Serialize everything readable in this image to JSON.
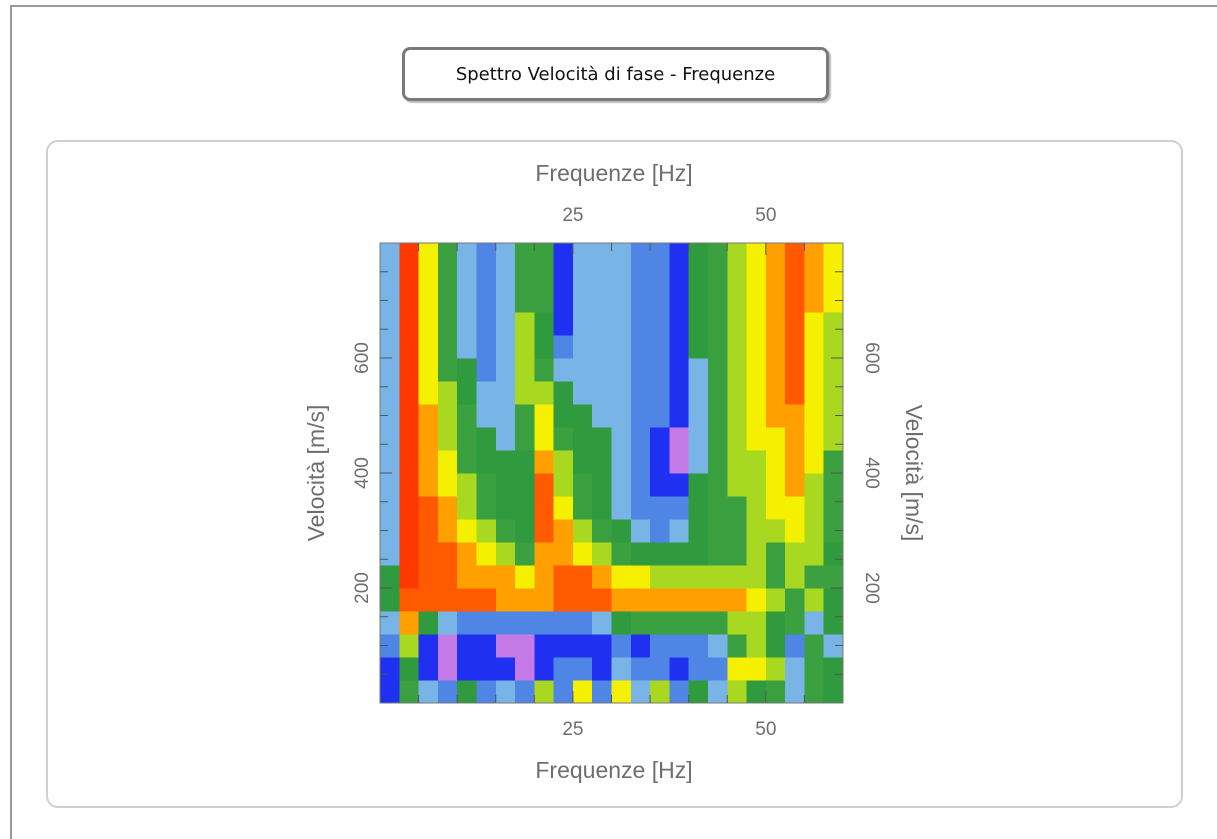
{
  "title": "Spettro Velocità di fase - Frequenze",
  "chart_data": {
    "type": "heatmap",
    "x_label": "Frequenze [Hz]",
    "y_label": "Velocità [m/s]",
    "xlim": [
      0,
      60
    ],
    "ylim": [
      0,
      800
    ],
    "xticks": [
      25,
      50
    ],
    "yticks": [
      200,
      400,
      600
    ],
    "xminorticks": [
      5,
      10,
      15,
      20,
      30,
      35,
      40,
      45,
      55
    ],
    "yminorticks": [
      50,
      100,
      150,
      250,
      300,
      350,
      450,
      500,
      550,
      650,
      700,
      750
    ],
    "xbins": [
      0,
      2.5,
      5,
      7.5,
      10,
      12.5,
      15,
      17.5,
      20,
      22.5,
      25,
      27.5,
      30,
      32.5,
      35,
      37.5,
      40,
      42.5,
      45,
      47.5,
      50,
      52.5,
      55,
      57.5,
      60
    ],
    "ybins": [
      0,
      40,
      80,
      120,
      160,
      200,
      240,
      280,
      320,
      360,
      400,
      440,
      480,
      520,
      560,
      600,
      640,
      680,
      720,
      760,
      800
    ],
    "zlim": [
      0,
      10
    ],
    "colors": [
      "#c47be8",
      "#2030f0",
      "#4f86e6",
      "#78b4e6",
      "#2f9b3e",
      "#3aa040",
      "#a8d820",
      "#f4f000",
      "#ffa000",
      "#ff5a00",
      "#ff3800"
    ],
    "z": [
      [
        1,
        5,
        3,
        2,
        4,
        2,
        3,
        2,
        6,
        2,
        7,
        2,
        7,
        3,
        6,
        2,
        4,
        3,
        6,
        4,
        5,
        3,
        5,
        4
      ],
      [
        1,
        4,
        1,
        0,
        1,
        1,
        1,
        0,
        1,
        2,
        2,
        1,
        3,
        2,
        2,
        1,
        2,
        2,
        7,
        7,
        6,
        3,
        5,
        4
      ],
      [
        2,
        6,
        1,
        0,
        1,
        1,
        0,
        0,
        1,
        1,
        1,
        1,
        2,
        1,
        2,
        2,
        2,
        3,
        5,
        6,
        4,
        2,
        5,
        3
      ],
      [
        3,
        8,
        4,
        3,
        2,
        2,
        2,
        2,
        2,
        2,
        2,
        3,
        4,
        5,
        5,
        5,
        5,
        5,
        6,
        6,
        4,
        5,
        3,
        4
      ],
      [
        4,
        9,
        9,
        9,
        9,
        9,
        8,
        8,
        8,
        9,
        9,
        9,
        8,
        8,
        8,
        8,
        8,
        8,
        8,
        7,
        6,
        5,
        6,
        4
      ],
      [
        4,
        10,
        9,
        9,
        8,
        8,
        8,
        7,
        8,
        9,
        9,
        8,
        7,
        7,
        6,
        6,
        6,
        6,
        6,
        6,
        5,
        6,
        5,
        5
      ],
      [
        3,
        10,
        9,
        9,
        8,
        7,
        6,
        5,
        8,
        8,
        7,
        6,
        5,
        4,
        4,
        4,
        4,
        5,
        5,
        6,
        5,
        6,
        6,
        4
      ],
      [
        3,
        10,
        9,
        8,
        7,
        6,
        5,
        4,
        9,
        8,
        6,
        5,
        4,
        3,
        2,
        3,
        4,
        5,
        5,
        6,
        6,
        7,
        6,
        5
      ],
      [
        3,
        10,
        9,
        8,
        6,
        5,
        4,
        4,
        9,
        7,
        5,
        4,
        3,
        2,
        2,
        2,
        4,
        5,
        5,
        6,
        7,
        7,
        6,
        5
      ],
      [
        3,
        10,
        8,
        7,
        6,
        5,
        4,
        4,
        9,
        6,
        5,
        4,
        3,
        2,
        1,
        1,
        4,
        5,
        6,
        6,
        7,
        8,
        6,
        5
      ],
      [
        3,
        10,
        8,
        7,
        5,
        4,
        4,
        4,
        8,
        6,
        4,
        4,
        3,
        2,
        1,
        0,
        3,
        5,
        6,
        6,
        7,
        8,
        7,
        5
      ],
      [
        3,
        10,
        8,
        6,
        5,
        4,
        3,
        5,
        7,
        5,
        4,
        4,
        3,
        2,
        1,
        0,
        3,
        5,
        6,
        7,
        7,
        8,
        7,
        6
      ],
      [
        3,
        10,
        8,
        6,
        5,
        3,
        3,
        5,
        7,
        4,
        4,
        3,
        3,
        2,
        2,
        1,
        3,
        5,
        6,
        7,
        8,
        8,
        7,
        6
      ],
      [
        3,
        10,
        7,
        6,
        4,
        3,
        3,
        6,
        6,
        4,
        3,
        3,
        3,
        2,
        2,
        1,
        3,
        5,
        6,
        7,
        8,
        9,
        7,
        6
      ],
      [
        3,
        10,
        7,
        5,
        4,
        2,
        3,
        6,
        5,
        3,
        3,
        3,
        3,
        2,
        2,
        1,
        3,
        5,
        6,
        7,
        8,
        9,
        7,
        6
      ],
      [
        3,
        10,
        7,
        5,
        3,
        2,
        3,
        6,
        4,
        2,
        3,
        3,
        3,
        2,
        2,
        1,
        4,
        5,
        6,
        7,
        8,
        9,
        7,
        6
      ],
      [
        3,
        10,
        7,
        5,
        3,
        2,
        3,
        6,
        4,
        1,
        3,
        3,
        3,
        2,
        2,
        1,
        4,
        5,
        6,
        7,
        8,
        9,
        7,
        6
      ],
      [
        3,
        10,
        7,
        5,
        3,
        2,
        3,
        5,
        5,
        1,
        3,
        3,
        3,
        2,
        2,
        1,
        4,
        5,
        6,
        7,
        8,
        9,
        8,
        7
      ],
      [
        3,
        10,
        7,
        5,
        3,
        2,
        3,
        5,
        5,
        1,
        3,
        3,
        3,
        2,
        2,
        1,
        4,
        5,
        6,
        7,
        8,
        9,
        8,
        7
      ],
      [
        3,
        10,
        7,
        5,
        3,
        2,
        3,
        5,
        5,
        1,
        3,
        3,
        3,
        2,
        2,
        1,
        4,
        5,
        6,
        7,
        8,
        9,
        8,
        7
      ]
    ]
  }
}
